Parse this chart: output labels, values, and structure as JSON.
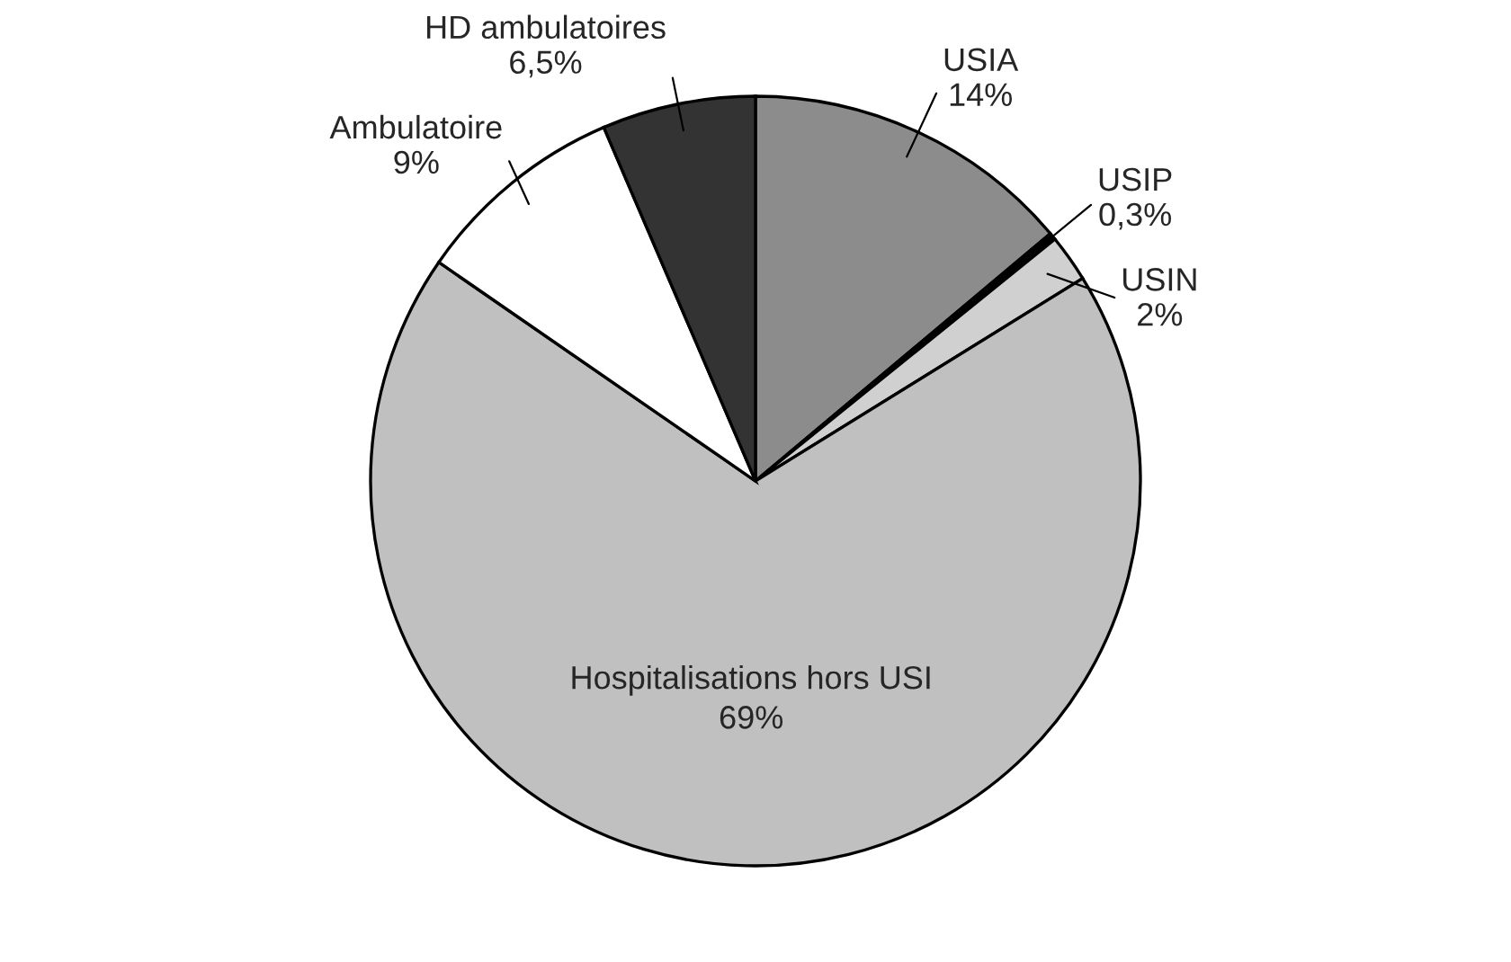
{
  "chart_data": {
    "type": "pie",
    "categories": [
      "USIA",
      "USIP",
      "USIN",
      "Hospitalisations hors USI",
      "Ambulatoire",
      "HD ambulatoires"
    ],
    "values": [
      14,
      0.3,
      2,
      69,
      9,
      6.5
    ],
    "value_labels": [
      "14%",
      "0,3%",
      "2%",
      "69%",
      "9%",
      "6,5%"
    ],
    "colors": [
      "#8c8c8c",
      "#000000",
      "#d0d0d0",
      "#c0c0c0",
      "#ffffff",
      "#333333"
    ],
    "legend": false
  }
}
